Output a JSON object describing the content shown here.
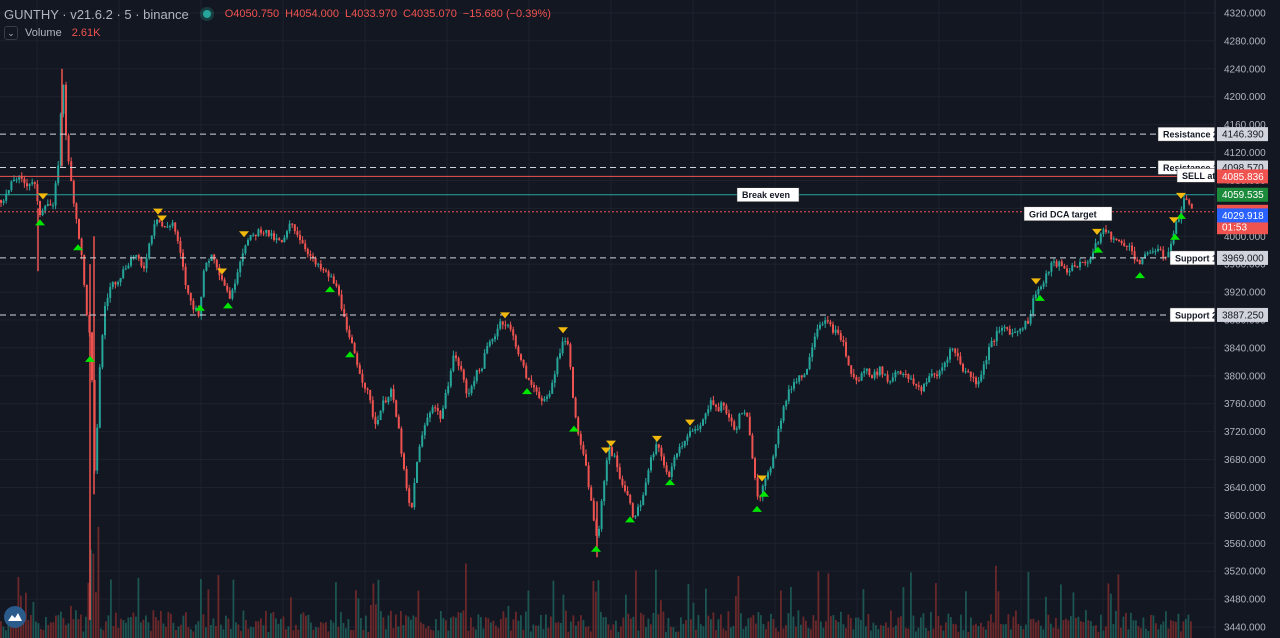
{
  "header": {
    "symbol": "GUNTHY · v21.6.2 · 5 · binance",
    "open": "O4050.750",
    "high": "H4054.000",
    "low": "L4033.970",
    "close": "C4035.070",
    "change": "−15.680 (−0.39%)"
  },
  "volume": {
    "label": "Volume",
    "value": "2.61K"
  },
  "colors": {
    "background": "#131722",
    "up": "#26a69a",
    "down": "#ef5350",
    "grid": "#1e222d",
    "buy_marker": "#00e600",
    "sell_marker": "#f0b90b"
  },
  "chart_data": {
    "type": "candlestick",
    "y_axis": {
      "min": 3440,
      "max": 4320,
      "ticks": [
        4320,
        4280,
        4240,
        4200,
        4160,
        4120,
        4080,
        4040,
        4000,
        3960,
        3920,
        3880,
        3840,
        3800,
        3760,
        3720,
        3680,
        3640,
        3600,
        3560,
        3520,
        3480,
        3440
      ]
    },
    "price_path": [
      [
        0,
        4052
      ],
      [
        6,
        4060
      ],
      [
        14,
        4085
      ],
      [
        25,
        4075
      ],
      [
        33,
        4080
      ],
      [
        38,
        4030
      ],
      [
        45,
        4050
      ],
      [
        52,
        4040
      ],
      [
        57,
        4100
      ],
      [
        62,
        4230
      ],
      [
        66,
        4120
      ],
      [
        70,
        4080
      ],
      [
        76,
        4020
      ],
      [
        80,
        3980
      ],
      [
        85,
        3900
      ],
      [
        90,
        3840
      ],
      [
        94,
        3640
      ],
      [
        98,
        3800
      ],
      [
        104,
        3900
      ],
      [
        110,
        3930
      ],
      [
        118,
        3940
      ],
      [
        126,
        3960
      ],
      [
        134,
        3975
      ],
      [
        142,
        3950
      ],
      [
        150,
        4000
      ],
      [
        155,
        4030
      ],
      [
        163,
        4010
      ],
      [
        172,
        4020
      ],
      [
        180,
        3970
      ],
      [
        186,
        3920
      ],
      [
        192,
        3900
      ],
      [
        198,
        3890
      ],
      [
        204,
        3960
      ],
      [
        212,
        3975
      ],
      [
        218,
        3950
      ],
      [
        224,
        3930
      ],
      [
        230,
        3910
      ],
      [
        236,
        3950
      ],
      [
        244,
        3990
      ],
      [
        252,
        4000
      ],
      [
        260,
        4010
      ],
      [
        266,
        4005
      ],
      [
        274,
        3995
      ],
      [
        282,
        3990
      ],
      [
        290,
        4020
      ],
      [
        298,
        4000
      ],
      [
        306,
        3980
      ],
      [
        314,
        3960
      ],
      [
        322,
        3950
      ],
      [
        330,
        3940
      ],
      [
        338,
        3920
      ],
      [
        346,
        3860
      ],
      [
        352,
        3840
      ],
      [
        360,
        3800
      ],
      [
        368,
        3770
      ],
      [
        374,
        3730
      ],
      [
        382,
        3760
      ],
      [
        390,
        3780
      ],
      [
        398,
        3720
      ],
      [
        404,
        3650
      ],
      [
        410,
        3600
      ],
      [
        416,
        3680
      ],
      [
        424,
        3730
      ],
      [
        432,
        3760
      ],
      [
        440,
        3740
      ],
      [
        446,
        3780
      ],
      [
        452,
        3830
      ],
      [
        460,
        3810
      ],
      [
        466,
        3770
      ],
      [
        474,
        3800
      ],
      [
        480,
        3810
      ],
      [
        486,
        3840
      ],
      [
        494,
        3860
      ],
      [
        500,
        3880
      ],
      [
        508,
        3870
      ],
      [
        514,
        3850
      ],
      [
        520,
        3820
      ],
      [
        528,
        3790
      ],
      [
        536,
        3780
      ],
      [
        542,
        3760
      ],
      [
        548,
        3770
      ],
      [
        556,
        3820
      ],
      [
        562,
        3855
      ],
      [
        568,
        3840
      ],
      [
        574,
        3740
      ],
      [
        580,
        3700
      ],
      [
        586,
        3660
      ],
      [
        592,
        3600
      ],
      [
        597,
        3560
      ],
      [
        602,
        3640
      ],
      [
        608,
        3700
      ],
      [
        614,
        3680
      ],
      [
        620,
        3650
      ],
      [
        626,
        3630
      ],
      [
        632,
        3600
      ],
      [
        638,
        3610
      ],
      [
        644,
        3640
      ],
      [
        650,
        3680
      ],
      [
        656,
        3700
      ],
      [
        662,
        3680
      ],
      [
        668,
        3650
      ],
      [
        674,
        3690
      ],
      [
        680,
        3700
      ],
      [
        688,
        3720
      ],
      [
        696,
        3720
      ],
      [
        704,
        3740
      ],
      [
        710,
        3770
      ],
      [
        716,
        3750
      ],
      [
        722,
        3760
      ],
      [
        728,
        3740
      ],
      [
        734,
        3720
      ],
      [
        740,
        3750
      ],
      [
        746,
        3740
      ],
      [
        752,
        3680
      ],
      [
        757,
        3625
      ],
      [
        762,
        3640
      ],
      [
        768,
        3660
      ],
      [
        774,
        3700
      ],
      [
        780,
        3740
      ],
      [
        786,
        3770
      ],
      [
        792,
        3790
      ],
      [
        798,
        3800
      ],
      [
        804,
        3800
      ],
      [
        810,
        3840
      ],
      [
        816,
        3870
      ],
      [
        822,
        3880
      ],
      [
        830,
        3870
      ],
      [
        836,
        3860
      ],
      [
        842,
        3850
      ],
      [
        848,
        3810
      ],
      [
        856,
        3790
      ],
      [
        864,
        3810
      ],
      [
        872,
        3800
      ],
      [
        880,
        3810
      ],
      [
        888,
        3790
      ],
      [
        896,
        3810
      ],
      [
        904,
        3800
      ],
      [
        912,
        3790
      ],
      [
        920,
        3780
      ],
      [
        928,
        3800
      ],
      [
        936,
        3800
      ],
      [
        944,
        3820
      ],
      [
        950,
        3840
      ],
      [
        956,
        3830
      ],
      [
        962,
        3810
      ],
      [
        970,
        3800
      ],
      [
        976,
        3790
      ],
      [
        982,
        3810
      ],
      [
        988,
        3840
      ],
      [
        996,
        3860
      ],
      [
        1004,
        3870
      ],
      [
        1012,
        3860
      ],
      [
        1020,
        3870
      ],
      [
        1028,
        3880
      ],
      [
        1034,
        3920
      ],
      [
        1042,
        3930
      ],
      [
        1050,
        3960
      ],
      [
        1058,
        3960
      ],
      [
        1066,
        3950
      ],
      [
        1074,
        3960
      ],
      [
        1082,
        3960
      ],
      [
        1090,
        3970
      ],
      [
        1096,
        3990
      ],
      [
        1102,
        4010
      ],
      [
        1110,
        4000
      ],
      [
        1118,
        3990
      ],
      [
        1126,
        3990
      ],
      [
        1134,
        3970
      ],
      [
        1140,
        3960
      ],
      [
        1148,
        3980
      ],
      [
        1156,
        3980
      ],
      [
        1164,
        3970
      ],
      [
        1170,
        3990
      ],
      [
        1176,
        4020
      ],
      [
        1182,
        4050
      ],
      [
        1187,
        4055
      ],
      [
        1191,
        4035
      ]
    ],
    "horizontal_lines": [
      {
        "label": "Resistance 2",
        "price_label": "4146.390",
        "price": 4146.39,
        "style": "dashed",
        "color": "#d1d4dc"
      },
      {
        "label": "Resistance 1",
        "price_label": "4098.570",
        "price": 4098.57,
        "style": "dashed",
        "color": "#d1d4dc"
      },
      {
        "label": "SELL at",
        "price_label": "4085.836",
        "price": 4085.836,
        "style": "solid",
        "color": "#ef5350"
      },
      {
        "label": "Break even",
        "price_label": "4059.535",
        "price": 4059.535,
        "style": "solid",
        "color": "#26a69a"
      },
      {
        "label": "Grid DCA target",
        "price_label": "4035.070",
        "price": 4035.07,
        "style": "dotted",
        "color": "#ef5350"
      },
      {
        "label": "Support 1",
        "price_label": "3969.000",
        "price": 3969.0,
        "style": "dashed",
        "color": "#d1d4dc"
      },
      {
        "label": "Support 2",
        "price_label": "3887.250",
        "price": 3887.25,
        "style": "dashed",
        "color": "#d1d4dc"
      }
    ],
    "extra_price_labels": [
      {
        "text": "01:53",
        "price": 4013,
        "color": "#ef5350"
      },
      {
        "text": "4029.918",
        "price": 4029.918,
        "color": "#2962ff"
      }
    ],
    "buy_markers_x": [
      40,
      78,
      90,
      200,
      228,
      330,
      350,
      527,
      574,
      596,
      630,
      670,
      757,
      764,
      1040,
      1098,
      1140,
      1175,
      1181
    ],
    "sell_markers_x": [
      43,
      158,
      162,
      222,
      244,
      505,
      563,
      606,
      611,
      657,
      690,
      762,
      1036,
      1097,
      1174,
      1181
    ]
  }
}
